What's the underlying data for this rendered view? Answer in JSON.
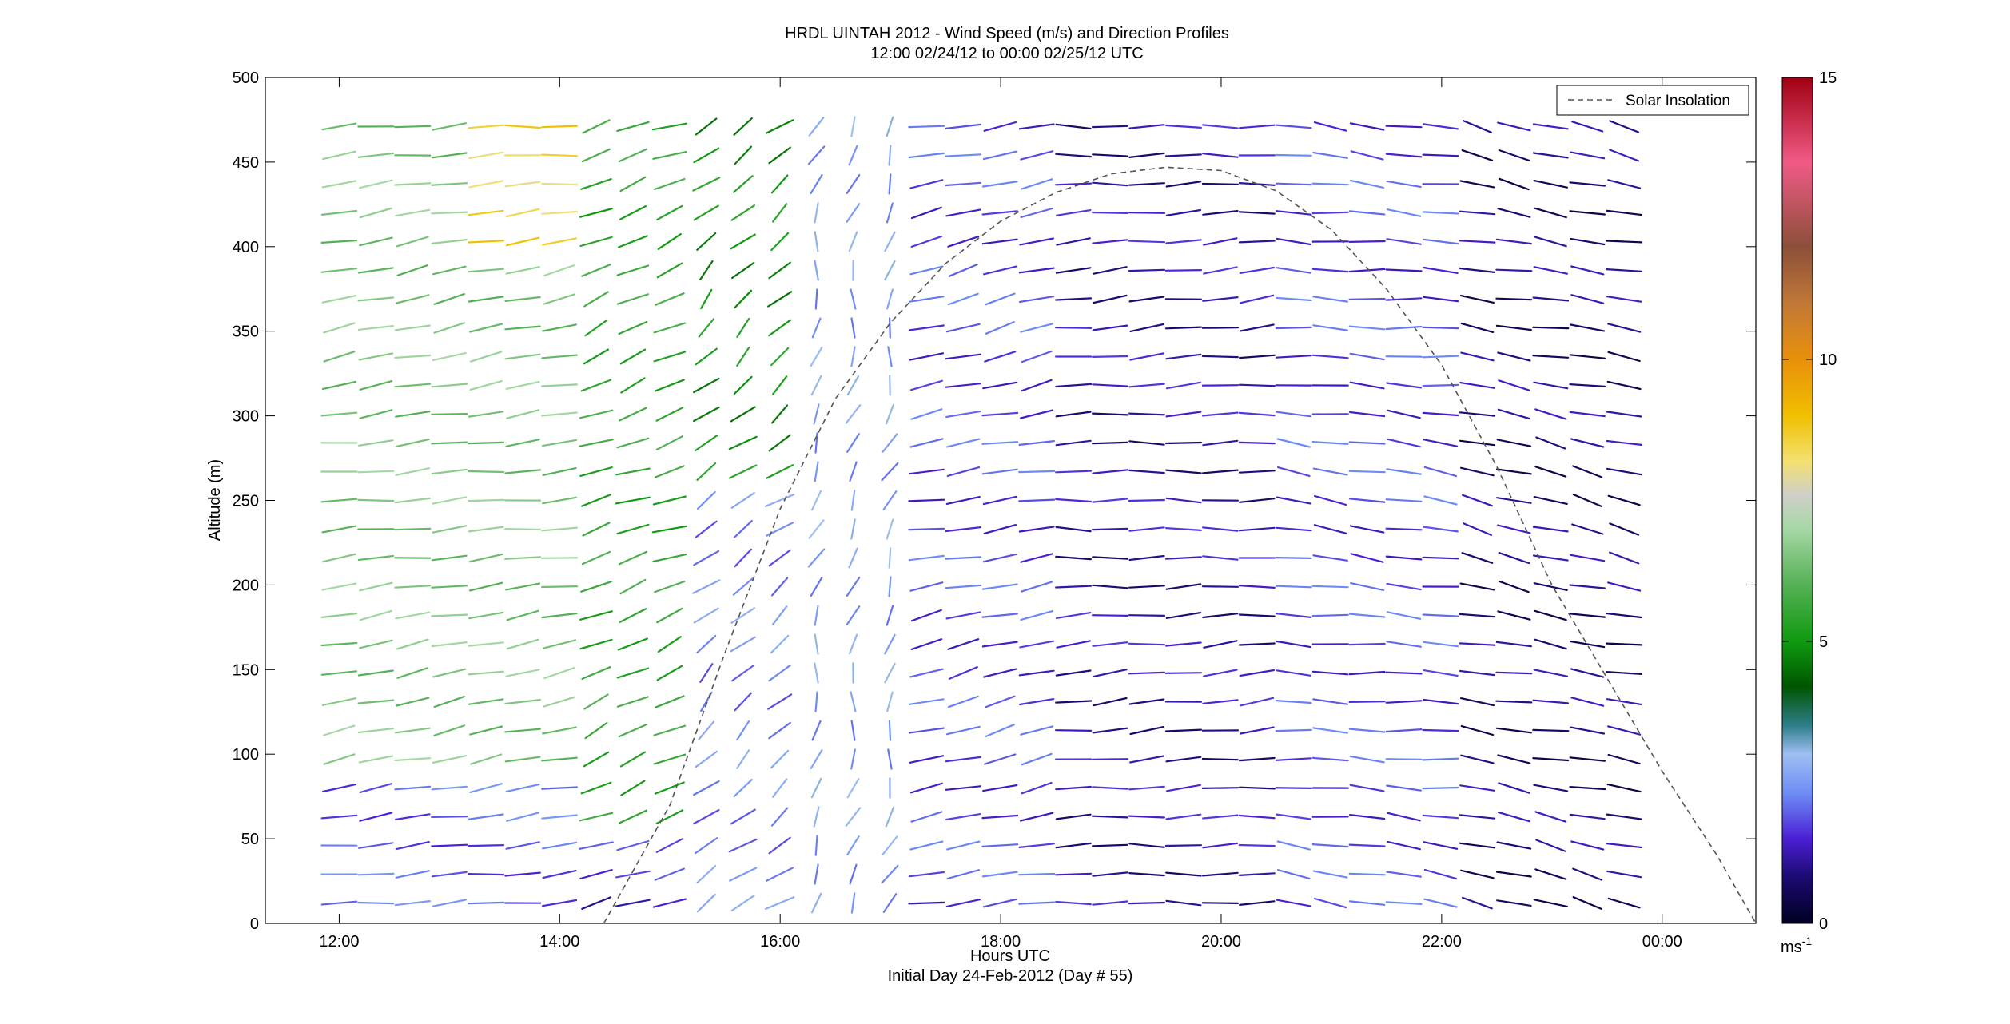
{
  "chart_data": {
    "type": "vector-field",
    "title": "HRDL UINTAH 2012 - Wind Speed (m/s) and Direction Profiles",
    "subtitle": "12:00 02/24/12 to 00:00 02/25/12  UTC",
    "xlabel": "Hours UTC",
    "xlabel2": "Initial Day 24-Feb-2012 (Day # 55)",
    "ylabel": "Altitude (m)",
    "xlim_hours": [
      11.33,
      24.85
    ],
    "ylim": [
      0,
      500
    ],
    "x_ticks": [
      {
        "value": 12,
        "label": "12:00"
      },
      {
        "value": 14,
        "label": "14:00"
      },
      {
        "value": 16,
        "label": "16:00"
      },
      {
        "value": 18,
        "label": "18:00"
      },
      {
        "value": 20,
        "label": "20:00"
      },
      {
        "value": 22,
        "label": "22:00"
      },
      {
        "value": 24,
        "label": "00:00"
      }
    ],
    "y_ticks": [
      0,
      50,
      100,
      150,
      200,
      250,
      300,
      350,
      400,
      450,
      500
    ],
    "legend": {
      "position": "top-right",
      "entries": [
        {
          "name": "Solar Insolation",
          "style": "dashed"
        }
      ]
    },
    "colorbar": {
      "min": 0,
      "max": 15,
      "ticks": [
        0,
        5,
        10,
        15
      ],
      "unit": "ms-1",
      "stops": [
        {
          "v": 0,
          "c": "#000022"
        },
        {
          "v": 0.8,
          "c": "#1a0a6e"
        },
        {
          "v": 1.5,
          "c": "#4b1fd6"
        },
        {
          "v": 2.3,
          "c": "#6d8cf5"
        },
        {
          "v": 3.0,
          "c": "#9fbff2"
        },
        {
          "v": 3.5,
          "c": "#2f7f8c"
        },
        {
          "v": 4.2,
          "c": "#005500"
        },
        {
          "v": 5.0,
          "c": "#109a10"
        },
        {
          "v": 6.0,
          "c": "#55b055"
        },
        {
          "v": 7.0,
          "c": "#a6d8a6"
        },
        {
          "v": 7.6,
          "c": "#cfcfc8"
        },
        {
          "v": 8.2,
          "c": "#f3e070"
        },
        {
          "v": 9.0,
          "c": "#f0c000"
        },
        {
          "v": 10.0,
          "c": "#e8900a"
        },
        {
          "v": 11.0,
          "c": "#c07838"
        },
        {
          "v": 12.0,
          "c": "#8c4f3a"
        },
        {
          "v": 13.5,
          "c": "#f05a86"
        },
        {
          "v": 15.0,
          "c": "#a00010"
        }
      ]
    },
    "wind_field": {
      "t_start": 12.0,
      "t_end": 23.8,
      "t_step": 0.333,
      "z_start": 12,
      "z_step": 17,
      "z_top": 485,
      "segments": [
        {
          "t0": 12.0,
          "t1": 14.0,
          "dir_deg": 255,
          "speed": 6.5,
          "low_speed": 2.0,
          "low_below_m": 95
        },
        {
          "t0": 13.3,
          "t1": 14.0,
          "dir_deg": 260,
          "speed": 8.5,
          "alt_min_m": 400
        },
        {
          "t0": 14.0,
          "t1": 15.2,
          "dir_deg": 235,
          "speed": 5.5,
          "low_speed": 1.5,
          "low_below_m": 60
        },
        {
          "t0": 15.3,
          "t1": 16.0,
          "dir_deg": 215,
          "speed": 5.0,
          "low_speed": 2.3,
          "low_below_m": 260
        },
        {
          "t0": 16.0,
          "t1": 17.0,
          "dir_deg": 190,
          "speed": 2.6
        },
        {
          "t0": 17.0,
          "t1": 18.5,
          "dir_deg": 250,
          "speed": 1.8
        },
        {
          "t0": 18.5,
          "t1": 20.5,
          "dir_deg": 265,
          "speed": 1.2
        },
        {
          "t0": 20.5,
          "t1": 22.0,
          "dir_deg": 280,
          "speed": 1.8
        },
        {
          "t0": 22.0,
          "t1": 23.8,
          "dir_deg": 290,
          "speed": 0.9
        }
      ]
    },
    "solar_insolation_curve": {
      "hours": [
        14.4,
        15.0,
        15.5,
        16.0,
        16.5,
        17.0,
        17.5,
        18.0,
        18.5,
        19.0,
        19.5,
        20.0,
        20.5,
        21.0,
        21.5,
        22.0,
        22.5,
        23.0,
        23.5,
        24.0,
        24.5,
        24.85
      ],
      "altitude_equiv": [
        0,
        70,
        160,
        245,
        310,
        355,
        390,
        415,
        432,
        443,
        447,
        445,
        433,
        410,
        375,
        330,
        270,
        200,
        145,
        90,
        40,
        0
      ]
    }
  }
}
